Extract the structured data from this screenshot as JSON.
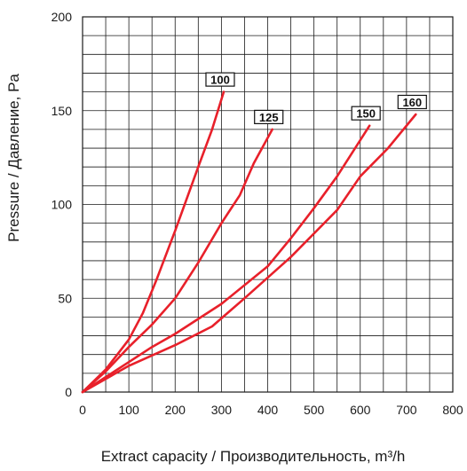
{
  "chart_data": {
    "type": "line",
    "xlabel": "Extract capacity / Производительность, m³/h",
    "ylabel": "Pressure / Давление, Pa",
    "xlim": [
      0,
      800
    ],
    "ylim": [
      0,
      200
    ],
    "x_ticks": [
      0,
      100,
      200,
      300,
      400,
      500,
      600,
      700,
      800
    ],
    "y_ticks": [
      0,
      50,
      100,
      150,
      200
    ],
    "x_minor_step": 50,
    "y_minor_step": 10,
    "grid": true,
    "line_color": "#e8202a",
    "series": [
      {
        "name": "100",
        "points": [
          [
            0,
            0
          ],
          [
            50,
            12
          ],
          [
            100,
            28
          ],
          [
            130,
            42
          ],
          [
            160,
            60
          ],
          [
            200,
            86
          ],
          [
            250,
            120
          ],
          [
            280,
            140
          ],
          [
            305,
            160
          ]
        ]
      },
      {
        "name": "125",
        "points": [
          [
            0,
            0
          ],
          [
            50,
            11
          ],
          [
            100,
            24
          ],
          [
            150,
            36
          ],
          [
            200,
            50
          ],
          [
            250,
            69
          ],
          [
            300,
            90
          ],
          [
            340,
            105
          ],
          [
            370,
            122
          ],
          [
            410,
            140
          ]
        ]
      },
      {
        "name": "150",
        "points": [
          [
            0,
            0
          ],
          [
            100,
            16
          ],
          [
            150,
            24
          ],
          [
            200,
            31
          ],
          [
            300,
            47
          ],
          [
            400,
            67
          ],
          [
            450,
            82
          ],
          [
            500,
            98
          ],
          [
            550,
            115
          ],
          [
            620,
            142
          ]
        ]
      },
      {
        "name": "160",
        "points": [
          [
            0,
            0
          ],
          [
            100,
            14
          ],
          [
            200,
            25
          ],
          [
            280,
            35
          ],
          [
            350,
            50
          ],
          [
            450,
            72
          ],
          [
            550,
            97
          ],
          [
            600,
            115
          ],
          [
            660,
            130
          ],
          [
            720,
            148
          ]
        ]
      }
    ]
  }
}
